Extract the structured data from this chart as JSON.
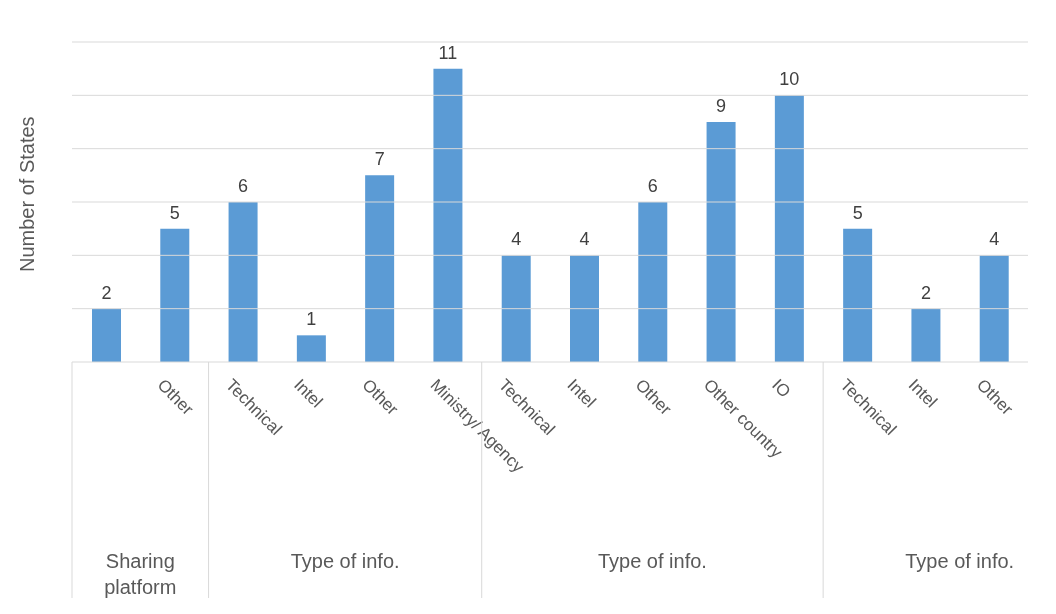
{
  "chart_data": {
    "type": "bar",
    "ylabel": "Number of States",
    "categories": [
      null,
      "Other",
      "Technical",
      "Intel",
      "Other",
      "Ministry/ Agency",
      "Technical",
      "Intel",
      "Other",
      "Other country",
      "IO",
      "Technical",
      "Intel",
      "Other"
    ],
    "values": [
      2,
      5,
      6,
      1,
      7,
      11,
      4,
      4,
      6,
      9,
      10,
      5,
      2,
      4
    ],
    "color": "#5b9bd5",
    "ylim": [
      0,
      12
    ],
    "tick_labels": "x",
    "grid": "y",
    "data_labels": true,
    "legend": false,
    "annotations": [
      "Sharing platform",
      "Type of info.",
      "Type of info.",
      "Type of info."
    ]
  }
}
